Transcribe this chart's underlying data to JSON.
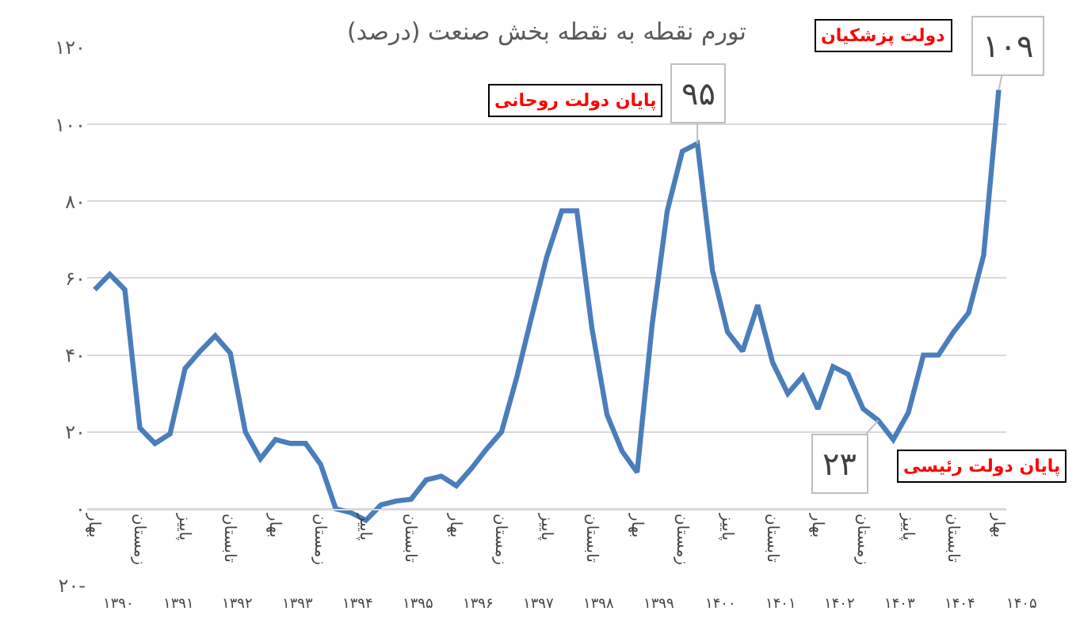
{
  "chart_data": {
    "type": "line",
    "title": "تورم نقطه به نقطه بخش صنعت (درصد)",
    "categories": [
      "بهار",
      null,
      null,
      "زمستان",
      null,
      null,
      "پاییز",
      null,
      null,
      "تابستان",
      null,
      null,
      "بهار",
      null,
      null,
      "زمستان",
      null,
      null,
      "پاییز",
      null,
      null,
      "تابستان",
      null,
      null,
      "بهار",
      null,
      null,
      "زمستان",
      null,
      null,
      "پاییز",
      null,
      null,
      "تابستان",
      null,
      null,
      "بهار",
      null,
      null,
      "زمستان",
      null,
      null,
      "پاییز",
      null,
      null,
      "تابستان",
      null,
      null,
      "بهار",
      null,
      null,
      "زمستان",
      null,
      null,
      "پاییز",
      null,
      null,
      "تابستان",
      null,
      null,
      "بهار"
    ],
    "series": [
      {
        "color": "#4a7ebb",
        "values": [
          57,
          61,
          57,
          21,
          17,
          19.5,
          36.5,
          41,
          45,
          40.5,
          20,
          13,
          18,
          17,
          17,
          11.5,
          0,
          -1,
          -3,
          1,
          2,
          2.5,
          7.5,
          8.5,
          6,
          10.5,
          15.5,
          20,
          34,
          50,
          65.5,
          77.5,
          77.5,
          47,
          24.5,
          15,
          9.5,
          48,
          77.5,
          93,
          95,
          62,
          46,
          41,
          53,
          38,
          30,
          34.5,
          26,
          37,
          35,
          26,
          23,
          18,
          25,
          40,
          40,
          46,
          51,
          66,
          109
        ]
      }
    ],
    "ylim": [
      -20,
      120
    ],
    "yticks": [
      {
        "value": -20,
        "label": "۲۰-"
      },
      {
        "value": 0,
        "label": "۰"
      },
      {
        "value": 20,
        "label": "۲۰"
      },
      {
        "value": 40,
        "label": "۴۰"
      },
      {
        "value": 60,
        "label": "۶۰"
      },
      {
        "value": 80,
        "label": "۸۰"
      },
      {
        "value": 100,
        "label": "۱۰۰"
      },
      {
        "value": 120,
        "label": "۱۲۰"
      }
    ],
    "grid": "y",
    "marker": "none",
    "line_style": "solid",
    "annotations": [
      "۹۵",
      "۱۰۹",
      "۲۳",
      "پایان دولت روحانی",
      "دولت پزشکیان",
      "پایان دولت رئیسی",
      "۱۳۹۰",
      "۱۳۹۱",
      "۱۳۹۲",
      "۱۳۹۳",
      "۱۳۹۴",
      "۱۳۹۵",
      "۱۳۹۶",
      "۱۳۹۷",
      "۱۳۹۸",
      "۱۳۹۹",
      "۱۴۰۰",
      "۱۴۰۱",
      "۱۴۰۲",
      "۱۴۰۳",
      "۱۴۰۴",
      "۱۴۰۵"
    ]
  }
}
